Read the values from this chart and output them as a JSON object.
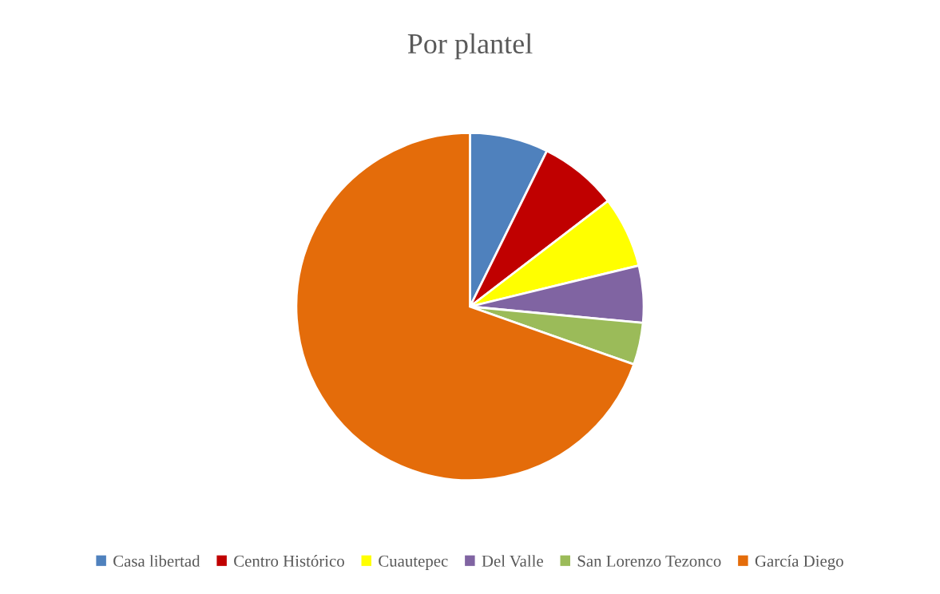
{
  "chart_data": {
    "type": "pie",
    "title": "Por plantel",
    "categories": [
      "Casa libertad",
      "Centro Histórico",
      "Cuautepec",
      "Del Valle",
      "San Lorenzo Tezonco",
      "García Diego"
    ],
    "values": [
      7.3,
      7.3,
      6.6,
      5.3,
      3.9,
      69.6
    ],
    "colors": [
      "#4f81bd",
      "#c00000",
      "#ffff00",
      "#8064a2",
      "#9bbb59",
      "#e46c0a"
    ],
    "legend": "bottom"
  }
}
